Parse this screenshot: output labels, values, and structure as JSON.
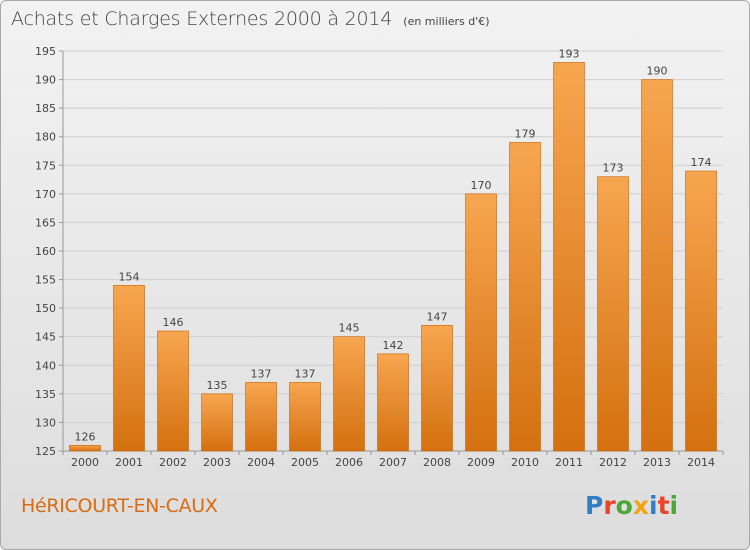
{
  "header": {
    "title": "Achats et Charges Externes 2000 à 2014",
    "unit": "(en milliers d'€)"
  },
  "footer": {
    "city": "HéRICOURT-EN-CAUX",
    "logo": "Proxiti",
    "logo_colors": [
      "#2f7fc8",
      "#e8452a",
      "#4aa836",
      "#f0a516",
      "#2f7fc8",
      "#e8452a",
      "#4aa836"
    ]
  },
  "colors": {
    "bar_top": "#f7a650",
    "bar_bottom": "#d4700f",
    "axis": "#999999",
    "grid": "#cfcfcf"
  },
  "chart_data": {
    "type": "bar",
    "title": "Achats et Charges Externes 2000 à 2014",
    "subtitle": "(en milliers d'€)",
    "xlabel": "",
    "ylabel": "",
    "categories": [
      "2000",
      "2001",
      "2002",
      "2003",
      "2004",
      "2005",
      "2006",
      "2007",
      "2008",
      "2009",
      "2010",
      "2011",
      "2012",
      "2013",
      "2014"
    ],
    "values": [
      126,
      154,
      146,
      135,
      137,
      137,
      145,
      142,
      147,
      170,
      179,
      193,
      173,
      190,
      174
    ],
    "data_labels": [
      "126",
      "154",
      "146",
      "135",
      "137",
      "137",
      "145",
      "142",
      "147",
      "170",
      "179",
      "193",
      "173",
      "190",
      "174"
    ],
    "ylim": [
      125,
      195
    ],
    "yticks": [
      125,
      130,
      135,
      140,
      145,
      150,
      155,
      160,
      165,
      170,
      175,
      180,
      185,
      190,
      195
    ],
    "grid": true,
    "legend": "none"
  }
}
